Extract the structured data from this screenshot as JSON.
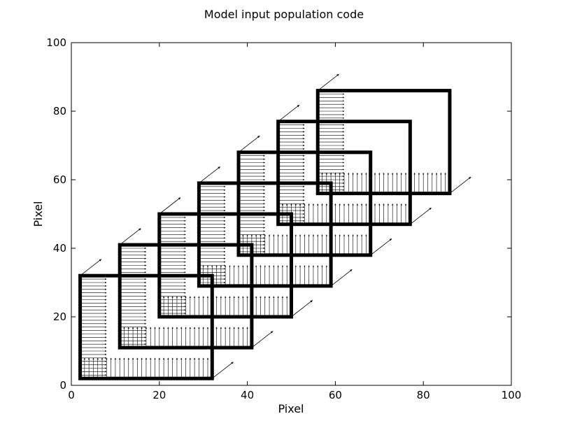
{
  "chart_data": {
    "type": "diagram",
    "title": "Model input population code",
    "xlabel": "Pixel",
    "ylabel": "Pixel",
    "xlim": [
      0,
      100
    ],
    "ylim": [
      0,
      100
    ],
    "xticks": [
      0,
      20,
      40,
      60,
      80,
      100
    ],
    "yticks": [
      0,
      20,
      40,
      60,
      80,
      100
    ],
    "grid": false,
    "boxes": [
      {
        "x0": 2,
        "y0": 2,
        "x1": 32,
        "y1": 32
      },
      {
        "x0": 11,
        "y0": 11,
        "x1": 41,
        "y1": 41
      },
      {
        "x0": 20,
        "y0": 20,
        "x1": 50,
        "y1": 50
      },
      {
        "x0": 29,
        "y0": 29,
        "x1": 59,
        "y1": 59
      },
      {
        "x0": 38,
        "y0": 38,
        "x1": 68,
        "y1": 68
      },
      {
        "x0": 47,
        "y0": 47,
        "x1": 77,
        "y1": 77
      },
      {
        "x0": 56,
        "y0": 56,
        "x1": 86,
        "y1": 86
      }
    ],
    "arrow_groups": [
      {
        "direction": "up",
        "x_from": 2,
        "x_to": 32,
        "y": 2,
        "length": 6,
        "spacing": 1
      },
      {
        "direction": "right",
        "x": 2,
        "y_from": 2,
        "y_to": 32,
        "length": 6,
        "spacing": 1
      },
      {
        "direction": "diagonal",
        "x": 32,
        "y": 2,
        "length": 6
      }
    ],
    "offset_step": 9,
    "group_count": 7
  }
}
